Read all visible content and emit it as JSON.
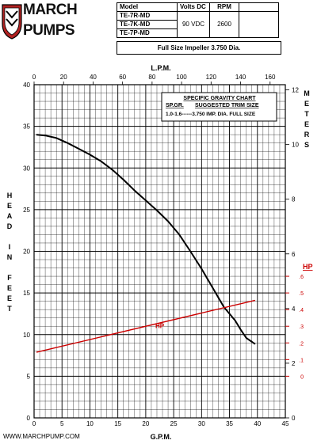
{
  "brand": {
    "line1": "MARCH",
    "line2": "PUMPS"
  },
  "spec_table": {
    "headers": {
      "model": "Model",
      "volts": "Volts DC",
      "rpm": "RPM"
    },
    "models": [
      "TE-7R-MD",
      "TE-7K-MD",
      "TE-7P-MD"
    ],
    "volts": "90 VDC",
    "rpm": "2600"
  },
  "impeller": "Full Size Impeller 3.750 Dia.",
  "website": "WWW.MARCHPUMP.COM",
  "colors": {
    "curve": "#000000",
    "hp": "#cc0000",
    "grid": "#000000"
  },
  "chart_data": {
    "type": "line",
    "xlabel": "G.P.M.",
    "ylabel": "HEAD IN FEET",
    "top_label": "L.P.M.",
    "right_label": "METERS",
    "hp_axis_label": "HP",
    "xlim": [
      0,
      45
    ],
    "ylim": [
      0,
      40
    ],
    "lpm_lim": [
      0,
      170.34
    ],
    "meters_lim": [
      0,
      12.19
    ],
    "x_ticks": [
      0,
      5,
      10,
      15,
      20,
      25,
      30,
      35,
      40,
      45
    ],
    "y_ticks": [
      0,
      5,
      10,
      15,
      20,
      25,
      30,
      35,
      40
    ],
    "lpm_ticks": [
      0,
      20,
      40,
      60,
      80,
      100,
      120,
      140,
      160
    ],
    "meters_ticks": [
      0,
      2,
      4,
      6,
      8,
      10,
      12
    ],
    "hp_ticks": [
      {
        "label": "0",
        "at_ft": 5
      },
      {
        "label": ".1",
        "at_ft": 7
      },
      {
        "label": ".2",
        "at_ft": 9
      },
      {
        "label": ".3",
        "at_ft": 11
      },
      {
        "label": ".4",
        "at_ft": 13
      },
      {
        "label": ".5",
        "at_ft": 15
      },
      {
        "label": ".6",
        "at_ft": 17
      }
    ],
    "gravity_chart": {
      "title": "SPECIFIC GRAVITY CHART",
      "col1": "SP.GR.",
      "col2": "SUGGESTED TRIM SIZE",
      "row": "1.0-1.6------3.750 IMP. DIA. FULL SIZE"
    },
    "series": [
      {
        "name": "",
        "x": [
          0.5,
          2,
          4,
          6,
          8,
          10,
          12,
          14,
          16,
          18,
          20,
          22,
          24,
          26,
          28,
          30,
          32,
          34,
          36,
          37,
          38,
          39.5
        ],
        "y": [
          34.0,
          33.9,
          33.6,
          33.0,
          32.3,
          31.6,
          30.8,
          29.8,
          28.6,
          27.3,
          26.1,
          24.9,
          23.6,
          22.0,
          20.0,
          17.9,
          15.6,
          13.3,
          11.7,
          10.6,
          9.6,
          8.9
        ]
      },
      {
        "name": "HP",
        "x": [
          0.5,
          39.5
        ],
        "y": [
          7.9,
          14.1
        ]
      }
    ]
  }
}
